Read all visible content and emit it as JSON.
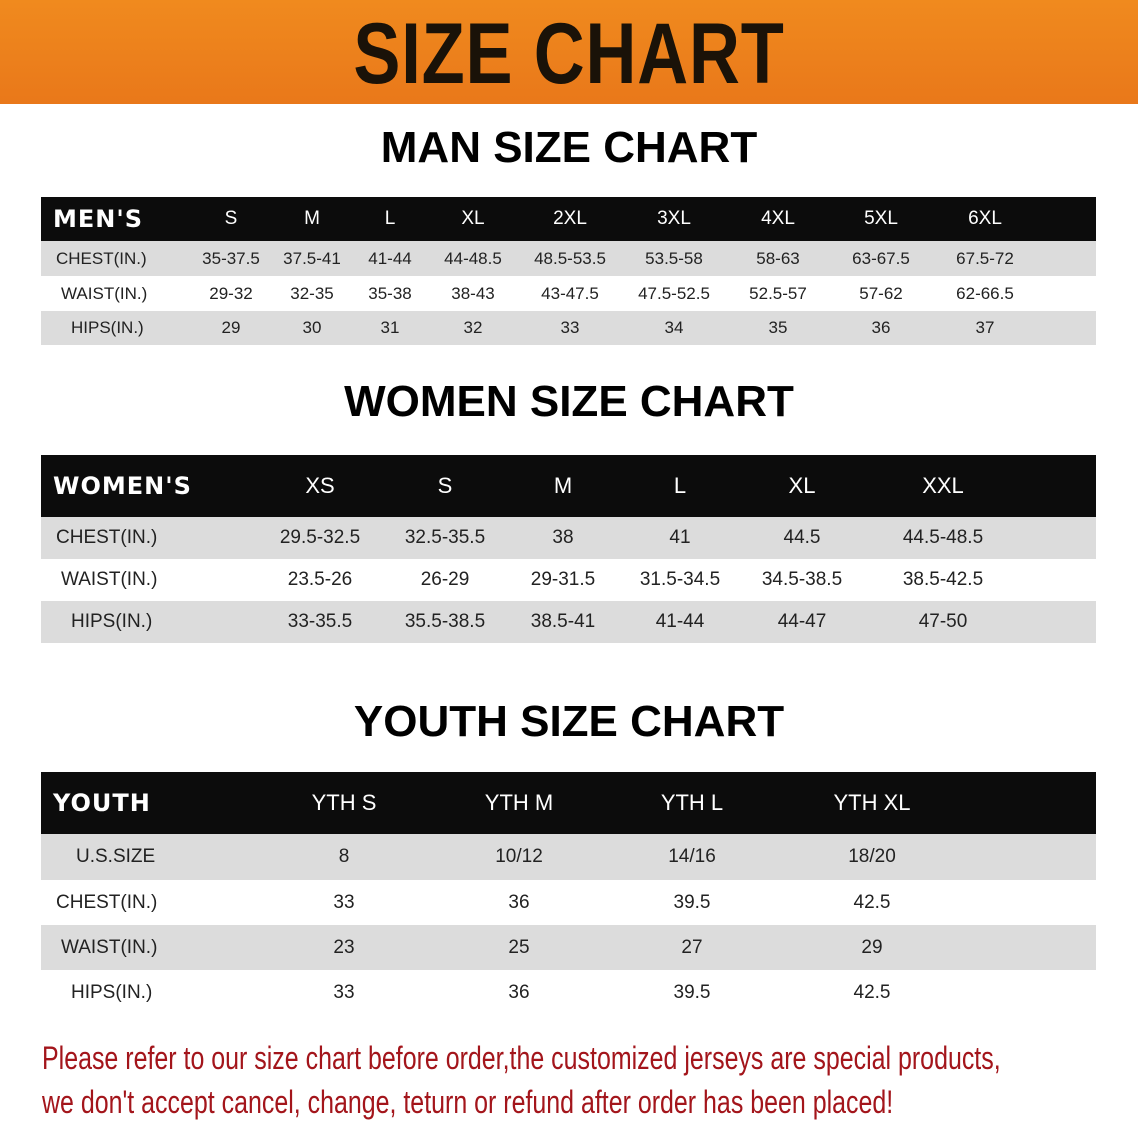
{
  "banner": {
    "title": "SIZE CHART",
    "color": "#ef8520"
  },
  "men": {
    "title": "MAN SIZE CHART",
    "header": [
      "MEN'S",
      "S",
      "M",
      "L",
      "XL",
      "2XL",
      "3XL",
      "4XL",
      "5XL",
      "6XL"
    ],
    "rows": [
      [
        "CHEST(IN.)",
        "35-37.5",
        "37.5-41",
        "41-44",
        "44-48.5",
        "48.5-53.5",
        "53.5-58",
        "58-63",
        "63-67.5",
        "67.5-72"
      ],
      [
        "WAIST(IN.)",
        "29-32",
        "32-35",
        "35-38",
        "38-43",
        "43-47.5",
        "47.5-52.5",
        "52.5-57",
        "57-62",
        "62-66.5"
      ],
      [
        "HIPS(IN.)",
        "29",
        "30",
        "31",
        "32",
        "33",
        "34",
        "35",
        "36",
        "37"
      ]
    ]
  },
  "women": {
    "title": "WOMEN SIZE CHART",
    "header": [
      "WOMEN'S",
      "XS",
      "S",
      "M",
      "L",
      "XL",
      "XXL"
    ],
    "rows": [
      [
        "CHEST(IN.)",
        "29.5-32.5",
        "32.5-35.5",
        "38",
        "41",
        "44.5",
        "44.5-48.5"
      ],
      [
        "WAIST(IN.)",
        "23.5-26",
        "26-29",
        "29-31.5",
        "31.5-34.5",
        "34.5-38.5",
        "38.5-42.5"
      ],
      [
        "HIPS(IN.)",
        "33-35.5",
        "35.5-38.5",
        "38.5-41",
        "41-44",
        "44-47",
        "47-50"
      ]
    ]
  },
  "youth": {
    "title": "YOUTH SIZE CHART",
    "header": [
      "YOUTH",
      "YTH S",
      "YTH M",
      "YTH L",
      "YTH XL"
    ],
    "rows": [
      [
        "U.S.SIZE",
        "8",
        "10/12",
        "14/16",
        "18/20"
      ],
      [
        "CHEST(IN.)",
        "33",
        "36",
        "39.5",
        "42.5"
      ],
      [
        "WAIST(IN.)",
        "23",
        "25",
        "27",
        "29"
      ],
      [
        "HIPS(IN.)",
        "33",
        "36",
        "39.5",
        "42.5"
      ]
    ]
  },
  "notice": {
    "line1": "Please refer to our size chart before order,the customized jerseys are special products,",
    "line2": "we don't accept cancel, change, teturn or refund after order has been placed!",
    "color": "#a3151b"
  }
}
